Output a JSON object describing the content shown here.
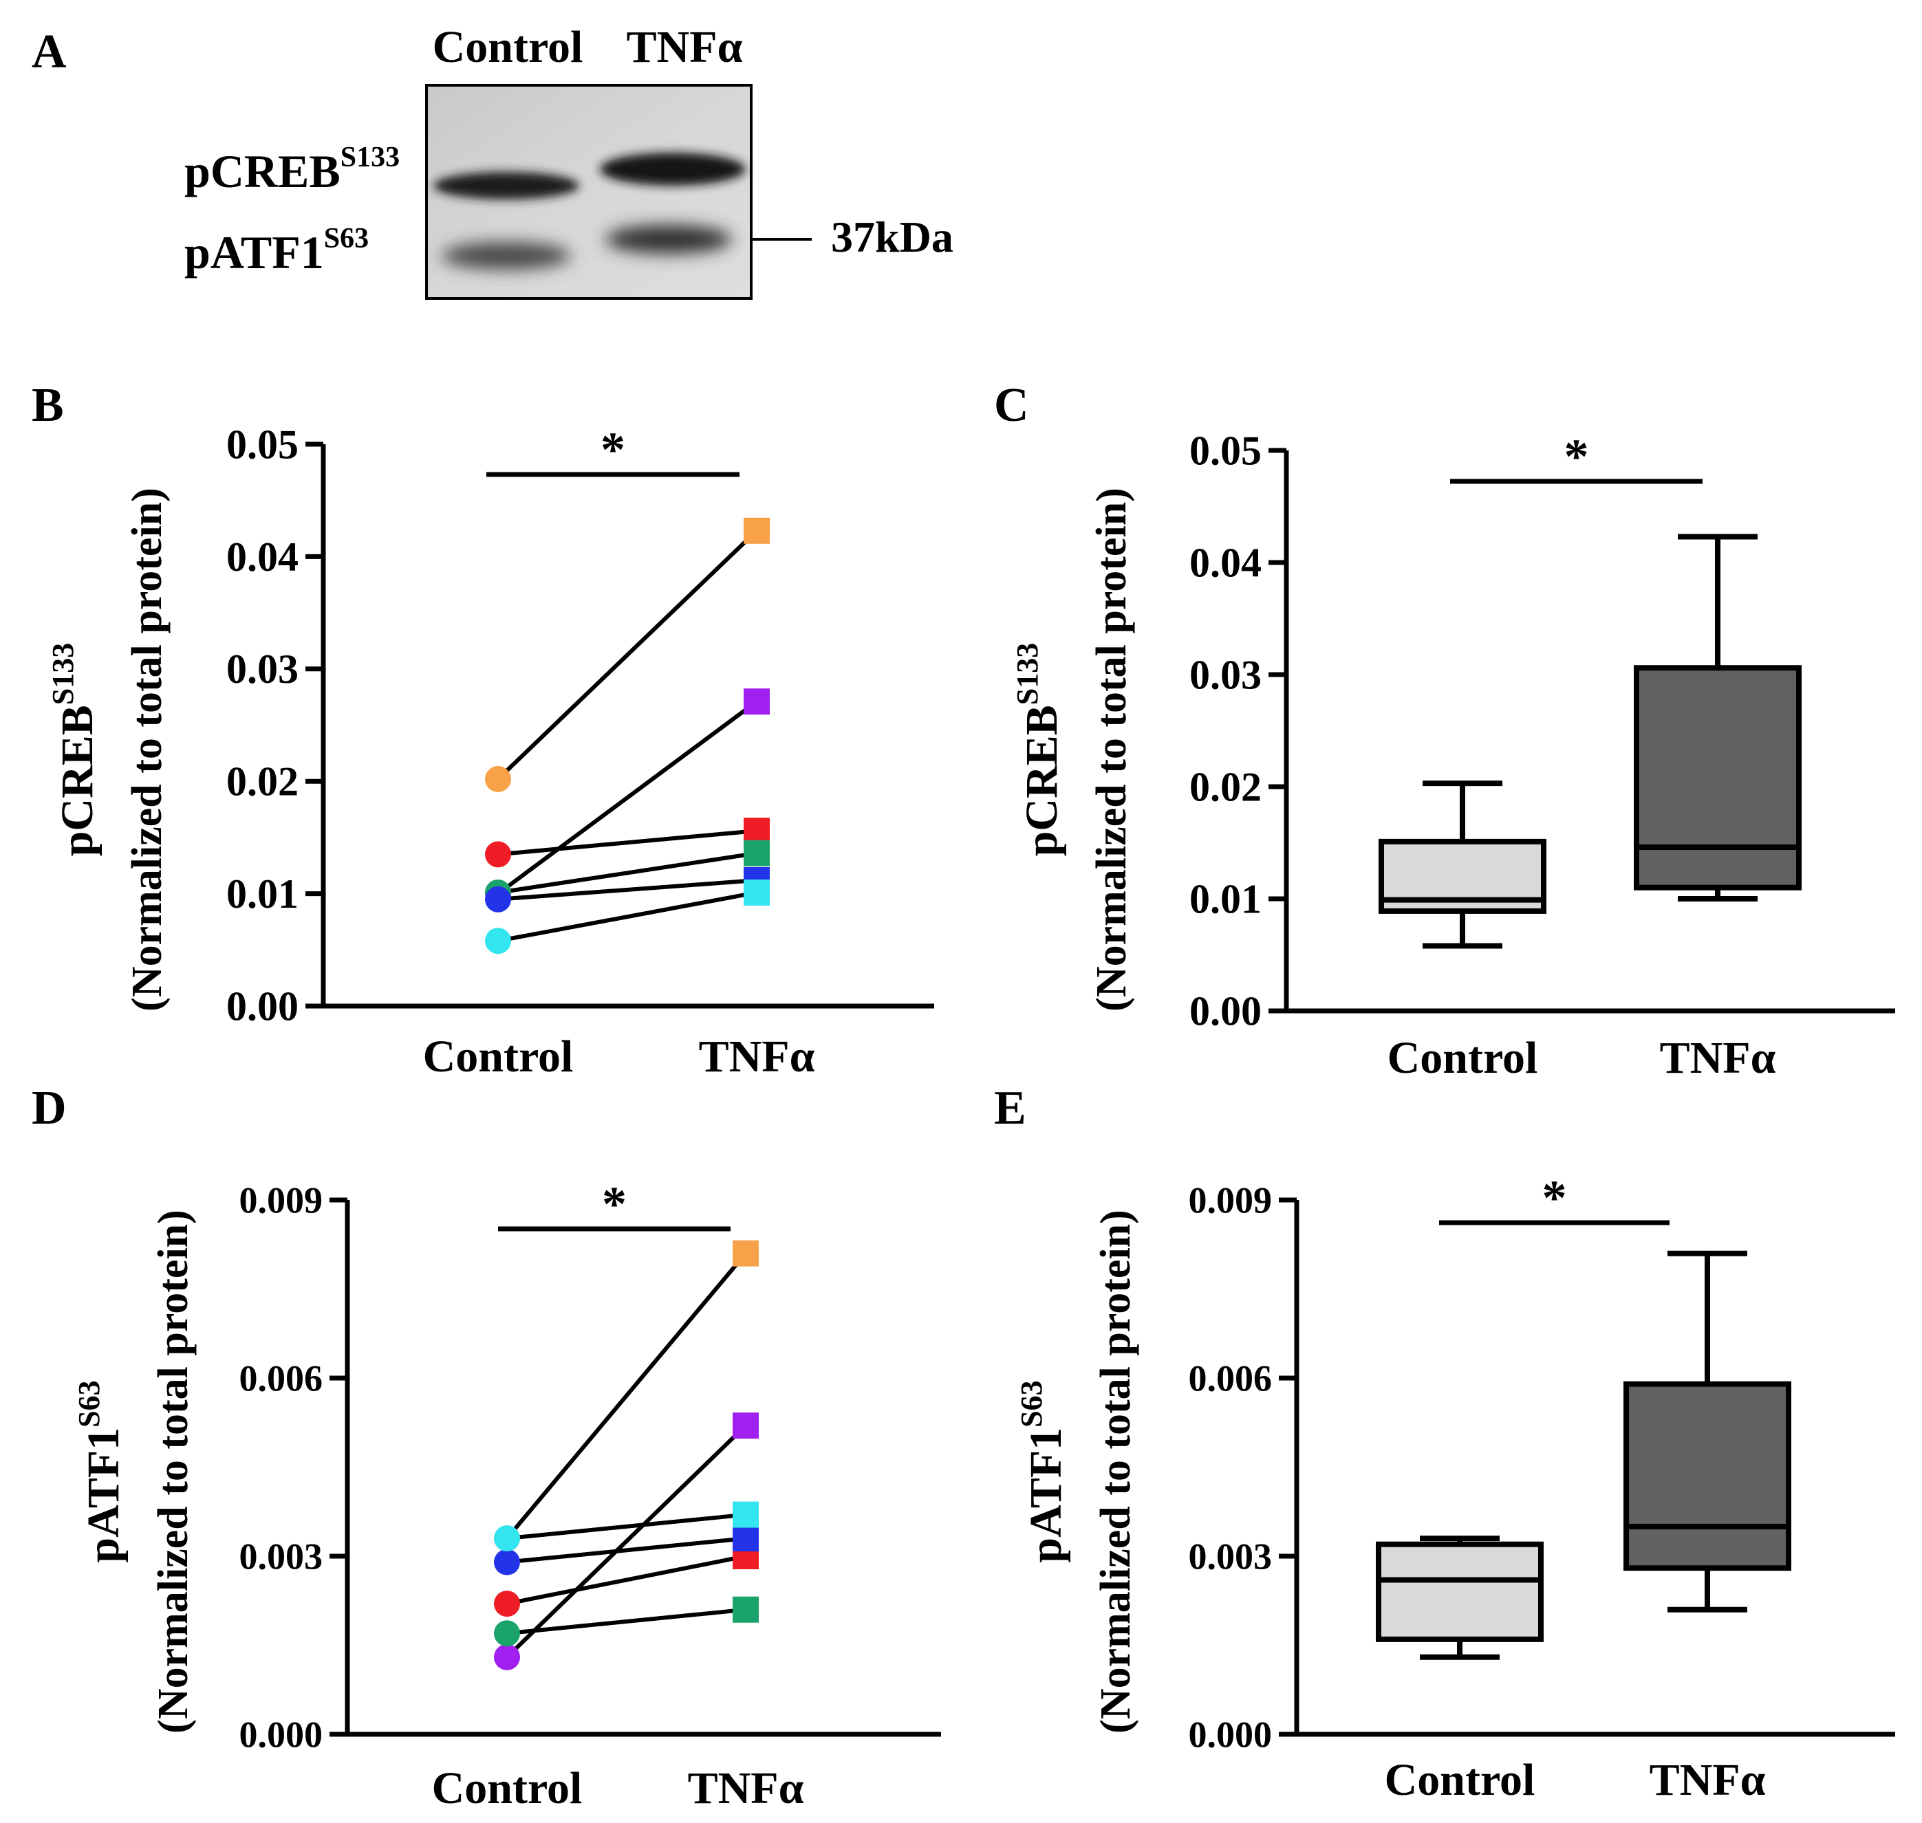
{
  "panel_letters": {
    "a": "A",
    "b": "B",
    "c": "C",
    "d": "D",
    "e": "E"
  },
  "blot": {
    "lane_labels": [
      "Control",
      "TNFα"
    ],
    "band1": {
      "name": "pCREB",
      "site": "S133"
    },
    "band2": {
      "name": "pATF1",
      "site": "S63"
    },
    "marker": "37kDa"
  },
  "colors": [
    "#f7a249",
    "#a020f0",
    "#ee1c25",
    "#1aa36b",
    "#2233e8",
    "#33e5ee"
  ],
  "signif": "*",
  "chart_data": [
    {
      "panel": "B",
      "type": "paired-dot",
      "ylabel_main": "pCREB",
      "ylabel_sup": "S133",
      "ylabel_sub": "(Normalized to total protein)",
      "categories": [
        "Control",
        "TNFα"
      ],
      "ylim": [
        0,
        0.05
      ],
      "yticks": [
        "0.00",
        "0.01",
        "0.02",
        "0.03",
        "0.04",
        "0.05"
      ],
      "series": [
        {
          "name": "orange",
          "values": [
            0.0202,
            0.0423
          ]
        },
        {
          "name": "purple",
          "values": [
            0.01,
            0.0271
          ]
        },
        {
          "name": "red",
          "values": [
            0.0135,
            0.0156
          ]
        },
        {
          "name": "green",
          "values": [
            0.0101,
            0.0136
          ]
        },
        {
          "name": "blue",
          "values": [
            0.0095,
            0.0112
          ]
        },
        {
          "name": "cyan",
          "values": [
            0.0058,
            0.0101
          ]
        }
      ]
    },
    {
      "panel": "C",
      "type": "boxplot",
      "ylabel_main": "pCREB",
      "ylabel_sup": "S133",
      "ylabel_sub": "(Normalized to total protein)",
      "categories": [
        "Control",
        "TNFα"
      ],
      "ylim": [
        0,
        0.05
      ],
      "yticks": [
        "0.00",
        "0.01",
        "0.02",
        "0.03",
        "0.04",
        "0.05"
      ],
      "boxes": [
        {
          "name": "Control",
          "min": 0.0058,
          "q1": 0.0089,
          "median": 0.0099,
          "q3": 0.0151,
          "max": 0.0203
        },
        {
          "name": "TNFα",
          "min": 0.01,
          "q1": 0.011,
          "median": 0.0146,
          "q3": 0.0306,
          "max": 0.0423
        }
      ]
    },
    {
      "panel": "D",
      "type": "paired-dot",
      "ylabel_main": "pATF1",
      "ylabel_sup": "S63",
      "ylabel_sub": "(Normalized to total protein)",
      "categories": [
        "Control",
        "TNFα"
      ],
      "ylim": [
        0,
        0.009
      ],
      "yticks": [
        "0.000",
        "0.003",
        "0.006",
        "0.009"
      ],
      "series": [
        {
          "name": "orange",
          "values": [
            0.0033,
            0.0081
          ]
        },
        {
          "name": "purple",
          "values": [
            0.0013,
            0.0052
          ]
        },
        {
          "name": "red",
          "values": [
            0.0022,
            0.003
          ]
        },
        {
          "name": "green",
          "values": [
            0.0017,
            0.0021
          ]
        },
        {
          "name": "blue",
          "values": [
            0.0029,
            0.0033
          ]
        },
        {
          "name": "cyan",
          "values": [
            0.0033,
            0.0037
          ]
        }
      ]
    },
    {
      "panel": "E",
      "type": "boxplot",
      "ylabel_main": "pATF1",
      "ylabel_sup": "S63",
      "ylabel_sub": "(Normalized to total protein)",
      "categories": [
        "Control",
        "TNFα"
      ],
      "ylim": [
        0,
        0.009
      ],
      "yticks": [
        "0.000",
        "0.003",
        "0.006",
        "0.009"
      ],
      "boxes": [
        {
          "name": "Control",
          "min": 0.0013,
          "q1": 0.0016,
          "median": 0.0026,
          "q3": 0.0032,
          "max": 0.0033
        },
        {
          "name": "TNFα",
          "min": 0.0021,
          "q1": 0.0028,
          "median": 0.0035,
          "q3": 0.0059,
          "max": 0.0081
        }
      ]
    }
  ]
}
